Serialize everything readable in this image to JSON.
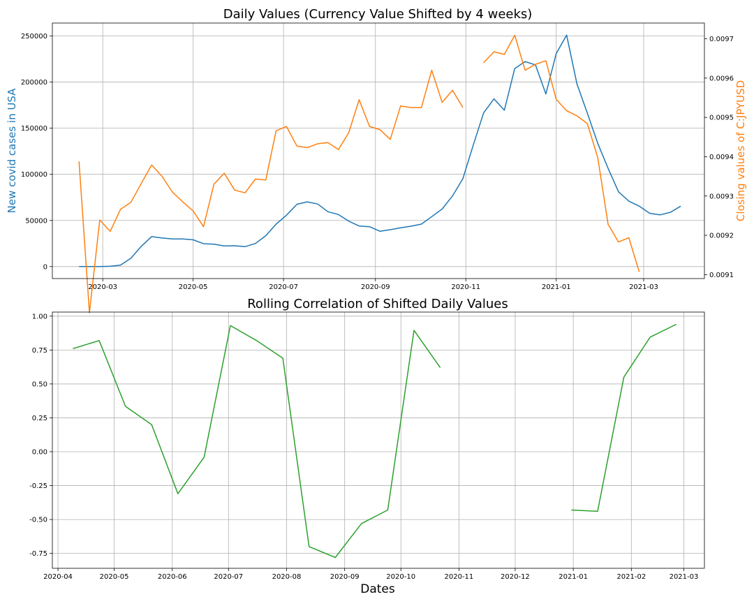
{
  "chart_data": [
    {
      "type": "line",
      "title": "Daily Values (Currency Value Shifted by 4 weeks)",
      "ylabel": "New covid cases in USA",
      "y2label": "Closing values of C:JPYUSD",
      "xlim": [
        "2020-01-27",
        "2021-04-11"
      ],
      "ylim": [
        -13000,
        264000
      ],
      "y2lim": [
        0.909,
        0.00974
      ],
      "x_ticks": [
        "2020-03",
        "2020-05",
        "2020-07",
        "2020-09",
        "2020-11",
        "2021-01",
        "2021-03"
      ],
      "y_ticks": [
        "0",
        "50000",
        "100000",
        "150000",
        "200000",
        "250000"
      ],
      "y2_ticks": [
        "0.0091",
        "0.0092",
        "0.0093",
        "0.0094",
        "0.0095",
        "0.0096",
        "0.0097"
      ],
      "grid": true,
      "colors": {
        "cases": "#1f77b4",
        "currency": "#ff7f0e"
      },
      "series": [
        {
          "axis": "left",
          "color": "#1f77b4",
          "points": [
            [
              "2020-02-14",
              0
            ],
            [
              "2020-02-21",
              0
            ],
            [
              "2020-02-28",
              100
            ],
            [
              "2020-03-06",
              300
            ],
            [
              "2020-03-13",
              1500
            ],
            [
              "2020-03-20",
              9000
            ],
            [
              "2020-03-27",
              22000
            ],
            [
              "2020-04-03",
              32500
            ],
            [
              "2020-04-10",
              31000
            ],
            [
              "2020-04-17",
              30000
            ],
            [
              "2020-04-24",
              30000
            ],
            [
              "2020-05-01",
              29000
            ],
            [
              "2020-05-08",
              24800
            ],
            [
              "2020-05-15",
              24300
            ],
            [
              "2020-05-22",
              22400
            ],
            [
              "2020-05-29",
              22600
            ],
            [
              "2020-06-05",
              21600
            ],
            [
              "2020-06-12",
              25000
            ],
            [
              "2020-06-19",
              33500
            ],
            [
              "2020-06-26",
              46000
            ],
            [
              "2020-07-03",
              55700
            ],
            [
              "2020-07-10",
              67500
            ],
            [
              "2020-07-17",
              70200
            ],
            [
              "2020-07-24",
              67800
            ],
            [
              "2020-07-31",
              59400
            ],
            [
              "2020-08-07",
              56500
            ],
            [
              "2020-08-14",
              49200
            ],
            [
              "2020-08-21",
              44000
            ],
            [
              "2020-08-28",
              43200
            ],
            [
              "2020-09-04",
              38300
            ],
            [
              "2020-09-11",
              40000
            ],
            [
              "2020-09-18",
              42000
            ],
            [
              "2020-09-25",
              43800
            ],
            [
              "2020-10-02",
              46000
            ],
            [
              "2020-10-09",
              54100
            ],
            [
              "2020-10-16",
              62400
            ],
            [
              "2020-10-23",
              76500
            ],
            [
              "2020-10-30",
              95300
            ],
            [
              "2020-11-06",
              131800
            ],
            [
              "2020-11-13",
              166600
            ],
            [
              "2020-11-20",
              181800
            ],
            [
              "2020-11-27",
              169500
            ],
            [
              "2020-12-04",
              214700
            ],
            [
              "2020-12-11",
              222200
            ],
            [
              "2020-12-18",
              218600
            ],
            [
              "2020-12-25",
              187100
            ],
            [
              "2021-01-01",
              230900
            ],
            [
              "2021-01-08",
              251000
            ],
            [
              "2021-01-15",
              198000
            ],
            [
              "2021-01-22",
              166300
            ],
            [
              "2021-01-29",
              133600
            ],
            [
              "2021-02-05",
              106500
            ],
            [
              "2021-02-12",
              81100
            ],
            [
              "2021-02-19",
              70900
            ],
            [
              "2021-02-26",
              65500
            ],
            [
              "2021-03-05",
              57800
            ],
            [
              "2021-03-12",
              56000
            ],
            [
              "2021-03-19",
              58800
            ],
            [
              "2021-03-26",
              65500
            ]
          ]
        },
        {
          "axis": "right",
          "color": "#ff7f0e",
          "points": [
            [
              "2020-02-14",
              0.009388
            ],
            [
              "2020-02-21",
              0.009003
            ],
            [
              "2020-02-28",
              0.009239
            ],
            [
              "2020-03-06",
              0.00921
            ],
            [
              "2020-03-13",
              0.009266
            ],
            [
              "2020-03-20",
              0.009284
            ],
            [
              "2020-03-27",
              0.009332
            ],
            [
              "2020-04-03",
              0.009379
            ],
            [
              "2020-04-10",
              0.00935
            ],
            [
              "2020-04-17",
              0.00931
            ],
            [
              "2020-04-24",
              0.009285
            ],
            [
              "2020-05-01",
              0.009262
            ],
            [
              "2020-05-08",
              0.009222
            ],
            [
              "2020-05-15",
              0.00933
            ],
            [
              "2020-05-22",
              0.009358
            ],
            [
              "2020-05-29",
              0.009315
            ],
            [
              "2020-06-05",
              0.009308
            ],
            [
              "2020-06-12",
              0.009343
            ],
            [
              "2020-06-19",
              0.009341
            ],
            [
              "2020-06-26",
              0.009466
            ],
            [
              "2020-07-03",
              0.009477
            ],
            [
              "2020-07-10",
              0.009427
            ],
            [
              "2020-07-17",
              0.009423
            ],
            [
              "2020-07-24",
              0.009433
            ],
            [
              "2020-07-31",
              0.009436
            ],
            [
              "2020-08-07",
              0.009418
            ],
            [
              "2020-08-14",
              0.009461
            ],
            [
              "2020-08-21",
              0.009545
            ],
            [
              "2020-08-28",
              0.009477
            ],
            [
              "2020-09-04",
              0.009469
            ],
            [
              "2020-09-11",
              0.009444
            ],
            [
              "2020-09-18",
              0.009529
            ],
            [
              "2020-09-25",
              0.009525
            ],
            [
              "2020-10-02",
              0.009525
            ],
            [
              "2020-10-09",
              0.00962
            ],
            [
              "2020-10-16",
              0.009538
            ],
            [
              "2020-10-23",
              0.009569
            ],
            [
              "2020-10-30",
              0.009525
            ],
            [
              "2020-11-06",
              null
            ],
            [
              "2020-11-13",
              0.009639
            ],
            [
              "2020-11-20",
              0.009667
            ],
            [
              "2020-11-27",
              0.00966
            ],
            [
              "2020-12-04",
              0.009709
            ],
            [
              "2020-12-11",
              0.00962
            ],
            [
              "2020-12-18",
              0.009635
            ],
            [
              "2020-12-25",
              0.009644
            ],
            [
              "2021-01-01",
              0.009546
            ],
            [
              "2021-01-08",
              0.009517
            ],
            [
              "2021-01-15",
              0.009504
            ],
            [
              "2021-01-22",
              0.009484
            ],
            [
              "2021-01-29",
              0.009398
            ],
            [
              "2021-02-05",
              0.009228
            ],
            [
              "2021-02-12",
              0.009183
            ],
            [
              "2021-02-19",
              0.009194
            ],
            [
              "2021-02-26",
              0.009107
            ]
          ]
        }
      ]
    },
    {
      "type": "line",
      "title": "Rolling Correlation of Shifted Daily Values",
      "xlabel": "Dates",
      "xlim": [
        "2020-03-29",
        "2021-03-12"
      ],
      "ylim": [
        -0.86,
        1.03
      ],
      "x_ticks": [
        "2020-04",
        "2020-05",
        "2020-06",
        "2020-07",
        "2020-08",
        "2020-09",
        "2020-10",
        "2020-11",
        "2020-12",
        "2021-01",
        "2021-02",
        "2021-03"
      ],
      "y_ticks": [
        "1.00",
        "0.75",
        "0.50",
        "0.25",
        "0.00",
        "-0.25",
        "-0.50",
        "-0.75"
      ],
      "grid": true,
      "colors": {
        "correlation": "#2ca02c"
      },
      "series": [
        {
          "color": "#2ca02c",
          "points": [
            [
              "2020-04-09",
              0.76
            ],
            [
              "2020-04-23",
              0.82
            ],
            [
              "2020-05-07",
              0.335
            ],
            [
              "2020-05-21",
              0.2
            ],
            [
              "2020-06-04",
              -0.31
            ],
            [
              "2020-06-18",
              -0.04
            ],
            [
              "2020-07-02",
              0.93
            ],
            [
              "2020-07-16",
              0.82
            ],
            [
              "2020-07-30",
              0.69
            ],
            [
              "2020-08-13",
              -0.7
            ],
            [
              "2020-08-27",
              -0.78
            ],
            [
              "2020-09-10",
              -0.53
            ],
            [
              "2020-09-24",
              -0.43
            ],
            [
              "2020-10-08",
              0.895
            ],
            [
              "2020-10-22",
              0.62
            ],
            [
              "2020-11-05",
              null
            ],
            [
              "2020-11-19",
              null
            ],
            [
              "2020-12-03",
              null
            ],
            [
              "2020-12-17",
              null
            ],
            [
              "2020-12-31",
              -0.43
            ],
            [
              "2021-01-14",
              -0.44
            ],
            [
              "2021-01-28",
              0.55
            ],
            [
              "2021-02-11",
              0.845
            ],
            [
              "2021-02-25",
              0.94
            ]
          ]
        }
      ]
    }
  ]
}
